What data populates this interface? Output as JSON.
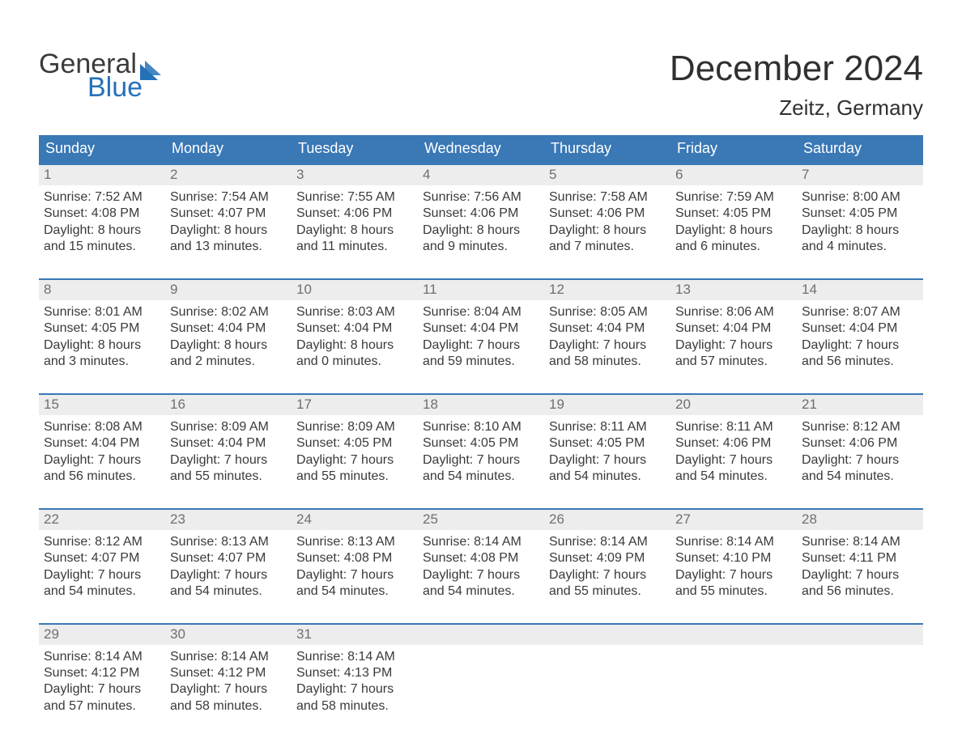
{
  "brand": {
    "word1": "General",
    "word2": "Blue",
    "accent_color": "#2571b8",
    "text_color": "#3b3b3b"
  },
  "title": "December 2024",
  "subtitle": "Zeitz, Germany",
  "header_bg": "#3a78b6",
  "header_text_color": "#ffffff",
  "daynum_bg": "#ededed",
  "daynum_color": "#6f6f6f",
  "week_border_color": "#3a78b6",
  "body_text_color": "#3a3a3a",
  "page_bg": "#ffffff",
  "font_sizes": {
    "title": 44,
    "subtitle": 26,
    "logo": 34,
    "weekday": 18,
    "daynum": 17,
    "body": 16
  },
  "weekdays": [
    "Sunday",
    "Monday",
    "Tuesday",
    "Wednesday",
    "Thursday",
    "Friday",
    "Saturday"
  ],
  "weeks": [
    [
      {
        "n": "1",
        "sunrise": "Sunrise: 7:52 AM",
        "sunset": "Sunset: 4:08 PM",
        "d1": "Daylight: 8 hours",
        "d2": "and 15 minutes."
      },
      {
        "n": "2",
        "sunrise": "Sunrise: 7:54 AM",
        "sunset": "Sunset: 4:07 PM",
        "d1": "Daylight: 8 hours",
        "d2": "and 13 minutes."
      },
      {
        "n": "3",
        "sunrise": "Sunrise: 7:55 AM",
        "sunset": "Sunset: 4:06 PM",
        "d1": "Daylight: 8 hours",
        "d2": "and 11 minutes."
      },
      {
        "n": "4",
        "sunrise": "Sunrise: 7:56 AM",
        "sunset": "Sunset: 4:06 PM",
        "d1": "Daylight: 8 hours",
        "d2": "and 9 minutes."
      },
      {
        "n": "5",
        "sunrise": "Sunrise: 7:58 AM",
        "sunset": "Sunset: 4:06 PM",
        "d1": "Daylight: 8 hours",
        "d2": "and 7 minutes."
      },
      {
        "n": "6",
        "sunrise": "Sunrise: 7:59 AM",
        "sunset": "Sunset: 4:05 PM",
        "d1": "Daylight: 8 hours",
        "d2": "and 6 minutes."
      },
      {
        "n": "7",
        "sunrise": "Sunrise: 8:00 AM",
        "sunset": "Sunset: 4:05 PM",
        "d1": "Daylight: 8 hours",
        "d2": "and 4 minutes."
      }
    ],
    [
      {
        "n": "8",
        "sunrise": "Sunrise: 8:01 AM",
        "sunset": "Sunset: 4:05 PM",
        "d1": "Daylight: 8 hours",
        "d2": "and 3 minutes."
      },
      {
        "n": "9",
        "sunrise": "Sunrise: 8:02 AM",
        "sunset": "Sunset: 4:04 PM",
        "d1": "Daylight: 8 hours",
        "d2": "and 2 minutes."
      },
      {
        "n": "10",
        "sunrise": "Sunrise: 8:03 AM",
        "sunset": "Sunset: 4:04 PM",
        "d1": "Daylight: 8 hours",
        "d2": "and 0 minutes."
      },
      {
        "n": "11",
        "sunrise": "Sunrise: 8:04 AM",
        "sunset": "Sunset: 4:04 PM",
        "d1": "Daylight: 7 hours",
        "d2": "and 59 minutes."
      },
      {
        "n": "12",
        "sunrise": "Sunrise: 8:05 AM",
        "sunset": "Sunset: 4:04 PM",
        "d1": "Daylight: 7 hours",
        "d2": "and 58 minutes."
      },
      {
        "n": "13",
        "sunrise": "Sunrise: 8:06 AM",
        "sunset": "Sunset: 4:04 PM",
        "d1": "Daylight: 7 hours",
        "d2": "and 57 minutes."
      },
      {
        "n": "14",
        "sunrise": "Sunrise: 8:07 AM",
        "sunset": "Sunset: 4:04 PM",
        "d1": "Daylight: 7 hours",
        "d2": "and 56 minutes."
      }
    ],
    [
      {
        "n": "15",
        "sunrise": "Sunrise: 8:08 AM",
        "sunset": "Sunset: 4:04 PM",
        "d1": "Daylight: 7 hours",
        "d2": "and 56 minutes."
      },
      {
        "n": "16",
        "sunrise": "Sunrise: 8:09 AM",
        "sunset": "Sunset: 4:04 PM",
        "d1": "Daylight: 7 hours",
        "d2": "and 55 minutes."
      },
      {
        "n": "17",
        "sunrise": "Sunrise: 8:09 AM",
        "sunset": "Sunset: 4:05 PM",
        "d1": "Daylight: 7 hours",
        "d2": "and 55 minutes."
      },
      {
        "n": "18",
        "sunrise": "Sunrise: 8:10 AM",
        "sunset": "Sunset: 4:05 PM",
        "d1": "Daylight: 7 hours",
        "d2": "and 54 minutes."
      },
      {
        "n": "19",
        "sunrise": "Sunrise: 8:11 AM",
        "sunset": "Sunset: 4:05 PM",
        "d1": "Daylight: 7 hours",
        "d2": "and 54 minutes."
      },
      {
        "n": "20",
        "sunrise": "Sunrise: 8:11 AM",
        "sunset": "Sunset: 4:06 PM",
        "d1": "Daylight: 7 hours",
        "d2": "and 54 minutes."
      },
      {
        "n": "21",
        "sunrise": "Sunrise: 8:12 AM",
        "sunset": "Sunset: 4:06 PM",
        "d1": "Daylight: 7 hours",
        "d2": "and 54 minutes."
      }
    ],
    [
      {
        "n": "22",
        "sunrise": "Sunrise: 8:12 AM",
        "sunset": "Sunset: 4:07 PM",
        "d1": "Daylight: 7 hours",
        "d2": "and 54 minutes."
      },
      {
        "n": "23",
        "sunrise": "Sunrise: 8:13 AM",
        "sunset": "Sunset: 4:07 PM",
        "d1": "Daylight: 7 hours",
        "d2": "and 54 minutes."
      },
      {
        "n": "24",
        "sunrise": "Sunrise: 8:13 AM",
        "sunset": "Sunset: 4:08 PM",
        "d1": "Daylight: 7 hours",
        "d2": "and 54 minutes."
      },
      {
        "n": "25",
        "sunrise": "Sunrise: 8:14 AM",
        "sunset": "Sunset: 4:08 PM",
        "d1": "Daylight: 7 hours",
        "d2": "and 54 minutes."
      },
      {
        "n": "26",
        "sunrise": "Sunrise: 8:14 AM",
        "sunset": "Sunset: 4:09 PM",
        "d1": "Daylight: 7 hours",
        "d2": "and 55 minutes."
      },
      {
        "n": "27",
        "sunrise": "Sunrise: 8:14 AM",
        "sunset": "Sunset: 4:10 PM",
        "d1": "Daylight: 7 hours",
        "d2": "and 55 minutes."
      },
      {
        "n": "28",
        "sunrise": "Sunrise: 8:14 AM",
        "sunset": "Sunset: 4:11 PM",
        "d1": "Daylight: 7 hours",
        "d2": "and 56 minutes."
      }
    ],
    [
      {
        "n": "29",
        "sunrise": "Sunrise: 8:14 AM",
        "sunset": "Sunset: 4:12 PM",
        "d1": "Daylight: 7 hours",
        "d2": "and 57 minutes."
      },
      {
        "n": "30",
        "sunrise": "Sunrise: 8:14 AM",
        "sunset": "Sunset: 4:12 PM",
        "d1": "Daylight: 7 hours",
        "d2": "and 58 minutes."
      },
      {
        "n": "31",
        "sunrise": "Sunrise: 8:14 AM",
        "sunset": "Sunset: 4:13 PM",
        "d1": "Daylight: 7 hours",
        "d2": "and 58 minutes."
      },
      {
        "empty": true
      },
      {
        "empty": true
      },
      {
        "empty": true
      },
      {
        "empty": true
      }
    ]
  ]
}
